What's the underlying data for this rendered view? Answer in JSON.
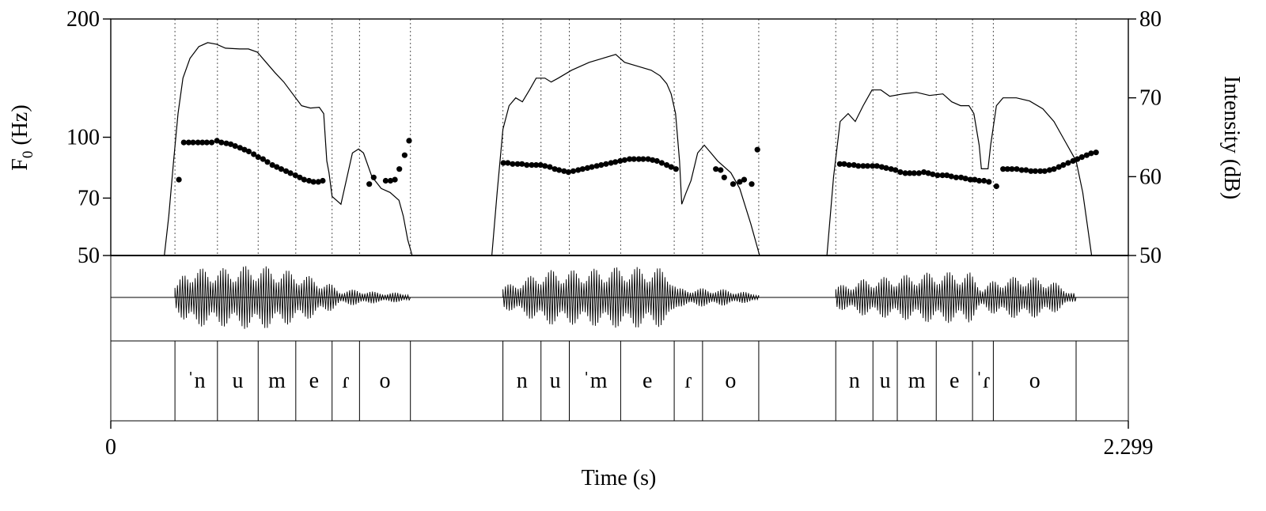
{
  "chart_data": {
    "type": "line",
    "axes": {
      "x": {
        "label": "Time (s)",
        "min": 0,
        "max": 2.299,
        "tick_labels": [
          "0",
          "2.299"
        ]
      },
      "y_left": {
        "label": "F0 (Hz)",
        "label_main": "F",
        "label_sub": "0",
        "label_rest": " (Hz)",
        "scale": "log",
        "ticks": [
          50,
          70,
          100,
          200
        ],
        "tick_labels": [
          "50",
          "70",
          "100",
          "200"
        ],
        "range": [
          50,
          200
        ]
      },
      "y_right": {
        "label": "Intensity (dB)",
        "ticks": [
          50,
          60,
          70,
          80
        ],
        "tick_labels": [
          "50",
          "60",
          "70",
          "80"
        ],
        "range": [
          50,
          80
        ]
      }
    },
    "segments": [
      {
        "label": "ˈn",
        "start": 0.145,
        "end": 0.241
      },
      {
        "label": "u",
        "start": 0.241,
        "end": 0.333
      },
      {
        "label": "m",
        "start": 0.333,
        "end": 0.418
      },
      {
        "label": "e",
        "start": 0.418,
        "end": 0.5
      },
      {
        "label": "ɾ",
        "start": 0.5,
        "end": 0.562
      },
      {
        "label": "o",
        "start": 0.562,
        "end": 0.677
      },
      {
        "label": "n",
        "start": 0.886,
        "end": 0.972
      },
      {
        "label": "u",
        "start": 0.972,
        "end": 1.036
      },
      {
        "label": "ˈm",
        "start": 1.036,
        "end": 1.152
      },
      {
        "label": "e",
        "start": 1.152,
        "end": 1.273
      },
      {
        "label": "ɾ",
        "start": 1.273,
        "end": 1.337
      },
      {
        "label": "o",
        "start": 1.337,
        "end": 1.464
      },
      {
        "label": "n",
        "start": 1.638,
        "end": 1.722
      },
      {
        "label": "u",
        "start": 1.722,
        "end": 1.777
      },
      {
        "label": "m",
        "start": 1.777,
        "end": 1.865
      },
      {
        "label": "e",
        "start": 1.865,
        "end": 1.947
      },
      {
        "label": "ˈɾ",
        "start": 1.947,
        "end": 1.994
      },
      {
        "label": "o",
        "start": 1.994,
        "end": 2.181
      }
    ],
    "series": [
      {
        "name": "F0",
        "unit": "Hz",
        "style": "points",
        "points": [
          [
            0.154,
            78
          ],
          [
            0.165,
            97
          ],
          [
            0.176,
            97
          ],
          [
            0.186,
            97
          ],
          [
            0.197,
            97
          ],
          [
            0.207,
            97
          ],
          [
            0.217,
            97
          ],
          [
            0.228,
            97
          ],
          [
            0.24,
            98
          ],
          [
            0.25,
            97
          ],
          [
            0.261,
            96.5
          ],
          [
            0.271,
            96
          ],
          [
            0.281,
            95
          ],
          [
            0.292,
            94
          ],
          [
            0.302,
            93
          ],
          [
            0.312,
            92
          ],
          [
            0.323,
            90.5
          ],
          [
            0.333,
            89
          ],
          [
            0.344,
            88
          ],
          [
            0.354,
            86.5
          ],
          [
            0.365,
            85
          ],
          [
            0.375,
            84
          ],
          [
            0.385,
            83
          ],
          [
            0.396,
            82
          ],
          [
            0.406,
            81
          ],
          [
            0.417,
            80
          ],
          [
            0.427,
            79
          ],
          [
            0.437,
            78
          ],
          [
            0.448,
            77.5
          ],
          [
            0.458,
            77
          ],
          [
            0.469,
            77
          ],
          [
            0.479,
            77.5
          ],
          [
            0.584,
            76
          ],
          [
            0.594,
            79
          ],
          [
            0.621,
            77.5
          ],
          [
            0.632,
            77.5
          ],
          [
            0.642,
            78
          ],
          [
            0.652,
            83
          ],
          [
            0.664,
            90
          ],
          [
            0.674,
            98
          ],
          [
            0.887,
            86
          ],
          [
            0.897,
            86
          ],
          [
            0.908,
            85.5
          ],
          [
            0.919,
            85.5
          ],
          [
            0.929,
            85.5
          ],
          [
            0.94,
            85
          ],
          [
            0.951,
            85
          ],
          [
            0.961,
            85
          ],
          [
            0.971,
            85
          ],
          [
            0.981,
            84.5
          ],
          [
            0.992,
            84
          ],
          [
            1.003,
            83
          ],
          [
            1.013,
            82.5
          ],
          [
            1.024,
            82
          ],
          [
            1.034,
            81.5
          ],
          [
            1.045,
            82
          ],
          [
            1.056,
            82.5
          ],
          [
            1.066,
            83
          ],
          [
            1.077,
            83.5
          ],
          [
            1.087,
            84
          ],
          [
            1.098,
            84.5
          ],
          [
            1.108,
            85
          ],
          [
            1.119,
            85.5
          ],
          [
            1.13,
            86
          ],
          [
            1.14,
            86.5
          ],
          [
            1.151,
            87
          ],
          [
            1.161,
            87.5
          ],
          [
            1.172,
            88
          ],
          [
            1.182,
            88
          ],
          [
            1.193,
            88
          ],
          [
            1.203,
            88
          ],
          [
            1.214,
            88
          ],
          [
            1.224,
            87.5
          ],
          [
            1.234,
            87
          ],
          [
            1.245,
            86
          ],
          [
            1.256,
            85
          ],
          [
            1.266,
            84
          ],
          [
            1.277,
            83
          ],
          [
            1.367,
            83
          ],
          [
            1.378,
            82.5
          ],
          [
            1.386,
            79
          ],
          [
            1.406,
            76
          ],
          [
            1.421,
            77
          ],
          [
            1.431,
            78
          ],
          [
            1.448,
            76
          ],
          [
            1.461,
            93
          ],
          [
            1.647,
            85.5
          ],
          [
            1.657,
            85.5
          ],
          [
            1.668,
            85
          ],
          [
            1.679,
            85
          ],
          [
            1.689,
            84.5
          ],
          [
            1.7,
            84.5
          ],
          [
            1.71,
            84.5
          ],
          [
            1.721,
            84.5
          ],
          [
            1.731,
            84.5
          ],
          [
            1.742,
            84
          ],
          [
            1.752,
            83.5
          ],
          [
            1.763,
            83
          ],
          [
            1.773,
            82.5
          ],
          [
            1.784,
            81.5
          ],
          [
            1.795,
            81
          ],
          [
            1.805,
            81
          ],
          [
            1.815,
            81
          ],
          [
            1.826,
            81
          ],
          [
            1.837,
            81.5
          ],
          [
            1.847,
            81
          ],
          [
            1.857,
            80.5
          ],
          [
            1.868,
            80
          ],
          [
            1.879,
            80
          ],
          [
            1.889,
            80
          ],
          [
            1.899,
            79.5
          ],
          [
            1.91,
            79
          ],
          [
            1.921,
            79
          ],
          [
            1.931,
            78.5
          ],
          [
            1.942,
            78
          ],
          [
            1.952,
            78
          ],
          [
            1.962,
            77.5
          ],
          [
            1.973,
            77.5
          ],
          [
            1.984,
            77
          ],
          [
            2.001,
            75
          ],
          [
            2.016,
            83
          ],
          [
            2.026,
            83
          ],
          [
            2.036,
            83
          ],
          [
            2.047,
            83
          ],
          [
            2.058,
            82.5
          ],
          [
            2.068,
            82.5
          ],
          [
            2.079,
            82
          ],
          [
            2.089,
            82
          ],
          [
            2.1,
            82
          ],
          [
            2.11,
            82
          ],
          [
            2.121,
            82.5
          ],
          [
            2.131,
            83
          ],
          [
            2.142,
            84
          ],
          [
            2.152,
            85
          ],
          [
            2.163,
            86
          ],
          [
            2.174,
            87
          ],
          [
            2.184,
            88
          ],
          [
            2.194,
            89
          ],
          [
            2.205,
            90
          ],
          [
            2.215,
            91
          ],
          [
            2.226,
            91.5
          ]
        ]
      },
      {
        "name": "Intensity",
        "unit": "dB",
        "style": "line",
        "points": [
          [
            0.121,
            50
          ],
          [
            0.131,
            55
          ],
          [
            0.142,
            62
          ],
          [
            0.152,
            68
          ],
          [
            0.163,
            72.5
          ],
          [
            0.179,
            75
          ],
          [
            0.199,
            76.5
          ],
          [
            0.219,
            77
          ],
          [
            0.239,
            76.8
          ],
          [
            0.259,
            76.3
          ],
          [
            0.291,
            76.2
          ],
          [
            0.311,
            76.2
          ],
          [
            0.331,
            75.8
          ],
          [
            0.351,
            74.5
          ],
          [
            0.371,
            73.2
          ],
          [
            0.391,
            72
          ],
          [
            0.411,
            70.5
          ],
          [
            0.431,
            69
          ],
          [
            0.451,
            68.7
          ],
          [
            0.471,
            68.8
          ],
          [
            0.481,
            68
          ],
          [
            0.488,
            62
          ],
          [
            0.493,
            60.5
          ],
          [
            0.5,
            57.5
          ],
          [
            0.52,
            56.5
          ],
          [
            0.546,
            63
          ],
          [
            0.56,
            63.5
          ],
          [
            0.571,
            63
          ],
          [
            0.59,
            60
          ],
          [
            0.611,
            58.5
          ],
          [
            0.631,
            58
          ],
          [
            0.651,
            57
          ],
          [
            0.661,
            55
          ],
          [
            0.671,
            52
          ],
          [
            0.681,
            50
          ],
          [
            0.861,
            50
          ],
          [
            0.873,
            58
          ],
          [
            0.886,
            66
          ],
          [
            0.9,
            69
          ],
          [
            0.915,
            70
          ],
          [
            0.93,
            69.5
          ],
          [
            0.946,
            71
          ],
          [
            0.961,
            72.5
          ],
          [
            0.981,
            72.5
          ],
          [
            0.995,
            72
          ],
          [
            1.011,
            72.5
          ],
          [
            1.041,
            73.5
          ],
          [
            1.081,
            74.5
          ],
          [
            1.111,
            75
          ],
          [
            1.141,
            75.5
          ],
          [
            1.161,
            74.5
          ],
          [
            1.191,
            74
          ],
          [
            1.221,
            73.5
          ],
          [
            1.241,
            72.8
          ],
          [
            1.256,
            71.8
          ],
          [
            1.266,
            70.5
          ],
          [
            1.276,
            68
          ],
          [
            1.285,
            62
          ],
          [
            1.29,
            56.5
          ],
          [
            1.3,
            58
          ],
          [
            1.311,
            59.5
          ],
          [
            1.326,
            63
          ],
          [
            1.341,
            64
          ],
          [
            1.356,
            63
          ],
          [
            1.371,
            62
          ],
          [
            1.401,
            60.5
          ],
          [
            1.421,
            58.5
          ],
          [
            1.446,
            54
          ],
          [
            1.466,
            50
          ],
          [
            1.618,
            50
          ],
          [
            1.633,
            60
          ],
          [
            1.648,
            67
          ],
          [
            1.666,
            68
          ],
          [
            1.682,
            67
          ],
          [
            1.7,
            69
          ],
          [
            1.72,
            71
          ],
          [
            1.74,
            71
          ],
          [
            1.76,
            70.2
          ],
          [
            1.79,
            70.5
          ],
          [
            1.82,
            70.7
          ],
          [
            1.85,
            70.3
          ],
          [
            1.88,
            70.5
          ],
          [
            1.9,
            69.5
          ],
          [
            1.92,
            69
          ],
          [
            1.939,
            69
          ],
          [
            1.95,
            68
          ],
          [
            1.962,
            64
          ],
          [
            1.967,
            61
          ],
          [
            1.982,
            61
          ],
          [
            1.988,
            64
          ],
          [
            2.001,
            69
          ],
          [
            2.016,
            70
          ],
          [
            2.046,
            70
          ],
          [
            2.076,
            69.6
          ],
          [
            2.106,
            68.6
          ],
          [
            2.131,
            67
          ],
          [
            2.156,
            64.5
          ],
          [
            2.181,
            62
          ],
          [
            2.196,
            58
          ],
          [
            2.206,
            54
          ],
          [
            2.216,
            50
          ]
        ]
      }
    ],
    "waveform": {
      "label": "waveform",
      "voiced_regions": [
        {
          "start": 0.145,
          "end": 0.677,
          "amplitudes": [
            [
              0.15,
              0.35
            ],
            [
              0.17,
              0.8
            ],
            [
              0.25,
              0.8
            ],
            [
              0.33,
              0.9
            ],
            [
              0.42,
              0.7
            ],
            [
              0.47,
              0.5
            ],
            [
              0.5,
              0.35
            ],
            [
              0.52,
              0.2
            ],
            [
              0.56,
              0.22
            ],
            [
              0.6,
              0.15
            ],
            [
              0.677,
              0.12
            ]
          ]
        },
        {
          "start": 0.886,
          "end": 1.464,
          "amplitudes": [
            [
              0.886,
              0.3
            ],
            [
              0.94,
              0.55
            ],
            [
              0.98,
              0.75
            ],
            [
              1.05,
              0.75
            ],
            [
              1.16,
              0.85
            ],
            [
              1.26,
              0.8
            ],
            [
              1.28,
              0.25
            ],
            [
              1.34,
              0.25
            ],
            [
              1.39,
              0.22
            ],
            [
              1.464,
              0.1
            ]
          ]
        },
        {
          "start": 1.638,
          "end": 2.181,
          "amplitudes": [
            [
              1.638,
              0.3
            ],
            [
              1.7,
              0.5
            ],
            [
              1.78,
              0.6
            ],
            [
              1.86,
              0.7
            ],
            [
              1.94,
              0.7
            ],
            [
              1.97,
              0.3
            ],
            [
              2.0,
              0.5
            ],
            [
              2.06,
              0.6
            ],
            [
              2.12,
              0.5
            ],
            [
              2.181,
              0.1
            ]
          ]
        }
      ]
    },
    "grid": false
  }
}
